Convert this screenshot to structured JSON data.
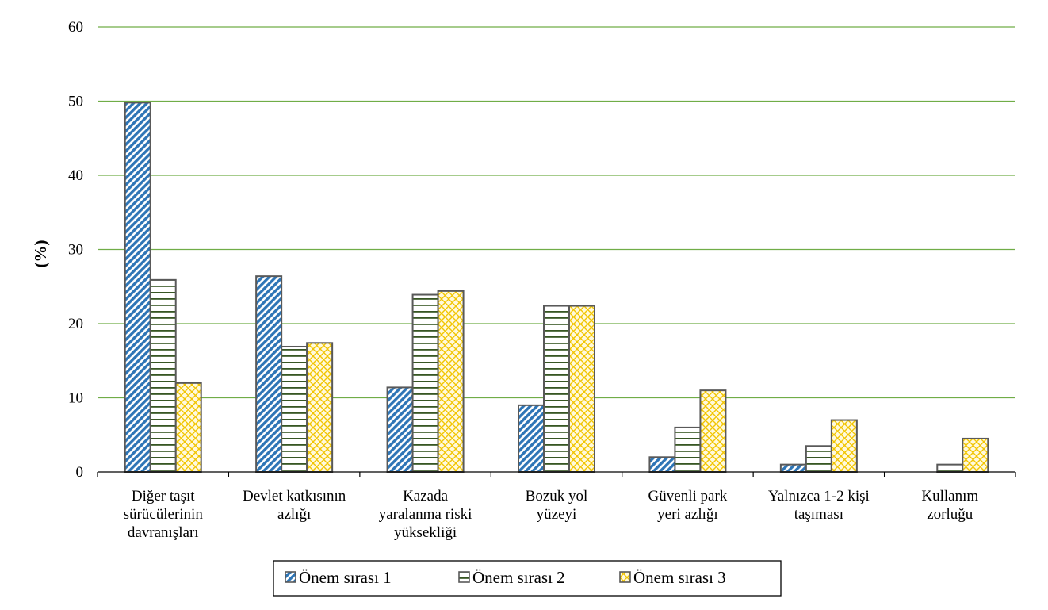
{
  "chart_data": {
    "type": "bar",
    "categories": [
      [
        "Diğer taşıt",
        "sürücülerinin",
        "davranışları"
      ],
      [
        "Devlet katkısının",
        "azlığı"
      ],
      [
        "Kazada",
        "yaralanma riski",
        "yüksekliği"
      ],
      [
        "Bozuk yol",
        "yüzeyi"
      ],
      [
        "Güvenli park",
        "yeri azlığı"
      ],
      [
        "Yalnızca 1-2 kişi",
        "taşıması"
      ],
      [
        "Kullanım",
        "zorluğu"
      ]
    ],
    "series": [
      {
        "name": "Önem sırası 1",
        "values": [
          49.8,
          26.4,
          11.4,
          9.0,
          2.0,
          1.0,
          0
        ],
        "color": "#2e75b6",
        "pattern": "diagonal"
      },
      {
        "name": "Önem sırası 2",
        "values": [
          25.9,
          16.9,
          23.9,
          22.4,
          6.0,
          3.5,
          1.0
        ],
        "color": "#375623",
        "pattern": "horizontal"
      },
      {
        "name": "Önem sırası 3",
        "values": [
          12.0,
          17.4,
          24.4,
          22.4,
          11.0,
          7.0,
          4.5
        ],
        "color": "#f2c500",
        "pattern": "crosshatch"
      }
    ],
    "ylabel": "(%)",
    "ylim": [
      0,
      60
    ],
    "yticks": [
      "0",
      "10",
      "20",
      "30",
      "40",
      "50",
      "60"
    ],
    "grid": true,
    "grid_color": "#70ad47",
    "legend_position": "bottom"
  }
}
